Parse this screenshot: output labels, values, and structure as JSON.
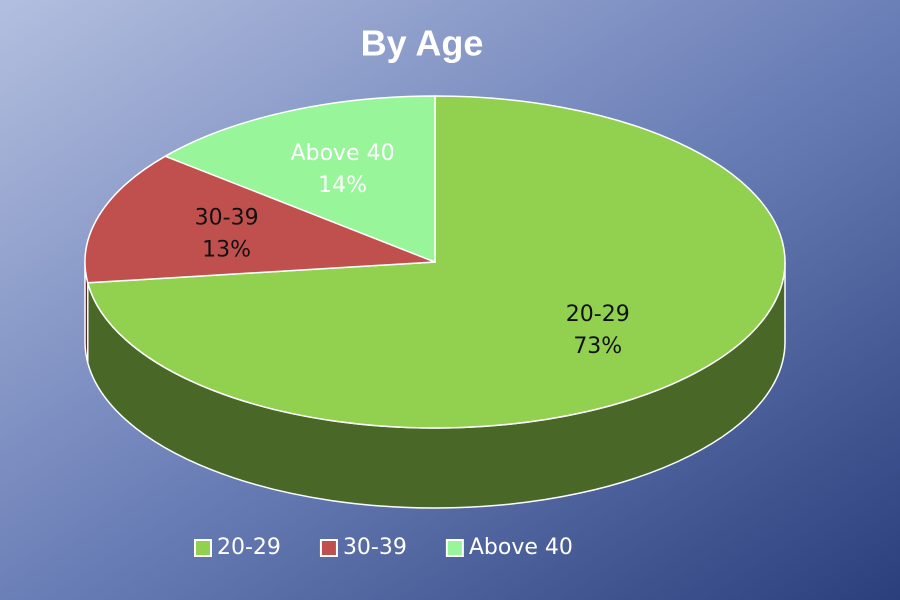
{
  "chart_data": {
    "type": "pie",
    "title": "By Age",
    "categories": [
      "20-29",
      "30-39",
      "Above 40"
    ],
    "values": [
      73,
      13,
      14
    ],
    "value_labels": [
      "73%",
      "13%",
      "14%"
    ],
    "colors": [
      "#92d050",
      "#c0504d",
      "#98f59a"
    ],
    "label_colors": [
      "#111111",
      "#111111",
      "#ffffff"
    ],
    "legend": "bottom"
  }
}
